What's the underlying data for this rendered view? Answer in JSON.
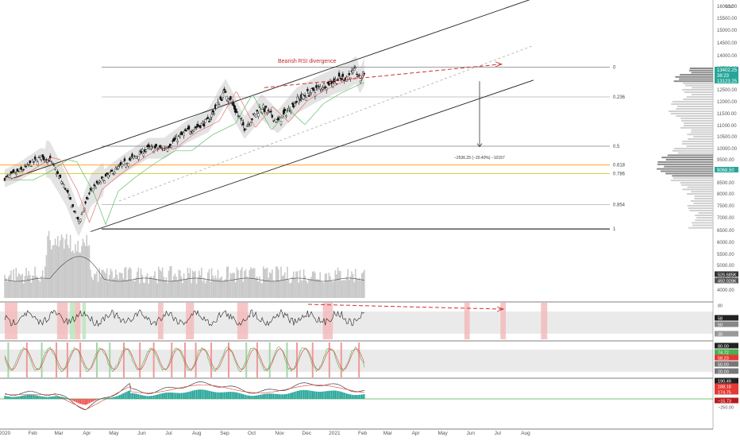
{
  "chart_data": {
    "type": "line",
    "instrument_note": "Daily candlestick price chart with rising channel, Fibonacci retracement, volume, RSI, stochastic and MACD panes",
    "currency": "USD",
    "annotation": "Bearish RSI divergence",
    "measure_label": "−2536.25 (−20.40%) −10157",
    "x_axis": {
      "tick_labels": [
        "2020",
        "Feb",
        "Mar",
        "Apr",
        "May",
        "Jun",
        "Jul",
        "Aug",
        "Sep",
        "Oct",
        "Nov",
        "Dec",
        "2021",
        "Feb",
        "Mar",
        "Apr",
        "May",
        "Jun",
        "Jul",
        "Aug"
      ]
    },
    "price_axis": {
      "tick_labels": [
        "16000.00",
        "15500.00",
        "15000.00",
        "14500.00",
        "14000.00",
        "13500.00",
        "12500.00",
        "12000.00",
        "11500.00",
        "11000.00",
        "10500.00",
        "10000.00",
        "9500.00",
        "8500.00",
        "8000.00",
        "7500.00",
        "7000.00",
        "6500.00",
        "6000.00",
        "5500.00",
        "5000.00",
        "4500.00",
        "4000.00"
      ],
      "ylim": [
        3700,
        16500
      ]
    },
    "price_badges": [
      {
        "label": "13402.25",
        "color": "#26a69a"
      },
      {
        "label": "38:23",
        "color": "#26a69a"
      },
      {
        "label": "13123.25",
        "color": "#26a69a"
      },
      {
        "label": "9068.50",
        "color": "#26a69a"
      }
    ],
    "fibonacci": {
      "levels": [
        {
          "label": "0",
          "price": 13550,
          "color": "#787b86"
        },
        {
          "label": "0.236",
          "price": 12200,
          "color": "#b0b0b0"
        },
        {
          "label": "0.5",
          "price": 10100,
          "color": "#787b86"
        },
        {
          "label": "0.618",
          "price": 9270,
          "color": "#ff9800"
        },
        {
          "label": "0.786",
          "price": 8900,
          "color": "#c8c800"
        },
        {
          "label": "0.854",
          "price": 7550,
          "color": "#b0b0b0"
        },
        {
          "label": "1",
          "price": 6560,
          "color": "#000000"
        }
      ]
    },
    "series": [
      {
        "name": "Close",
        "x": [
          "2020-01-02",
          "2020-01-20",
          "2020-02-10",
          "2020-02-20",
          "2020-03-09",
          "2020-03-23",
          "2020-04-06",
          "2020-04-24",
          "2020-05-15",
          "2020-06-08",
          "2020-06-26",
          "2020-07-20",
          "2020-08-14",
          "2020-09-02",
          "2020-09-23",
          "2020-10-12",
          "2020-10-30",
          "2020-11-20",
          "2020-12-10",
          "2020-12-31",
          "2021-01-15",
          "2021-01-25",
          "2021-01-29",
          "2021-02-04"
        ],
        "values": [
          8700,
          9050,
          9600,
          9500,
          8200,
          6800,
          8200,
          8800,
          9400,
          10000,
          10000,
          10700,
          11200,
          12450,
          10900,
          11800,
          11150,
          12050,
          12500,
          12900,
          13100,
          13400,
          12900,
          13400
        ]
      }
    ],
    "panes": [
      {
        "name": "Volume",
        "tick_labels": [
          "526.685K",
          "492.028K"
        ]
      },
      {
        "name": "RSI",
        "tick_labels": [
          "80",
          "58",
          "50",
          "30"
        ]
      },
      {
        "name": "Stochastic",
        "tick_labels": [
          "80.00",
          "74.72",
          "58.23",
          "50.00",
          "20.00"
        ]
      },
      {
        "name": "MACD",
        "tick_labels": [
          "190.49",
          "188.18",
          "174.75",
          "−250.00",
          "−15.73"
        ]
      }
    ],
    "grid": false,
    "legend": "none"
  }
}
